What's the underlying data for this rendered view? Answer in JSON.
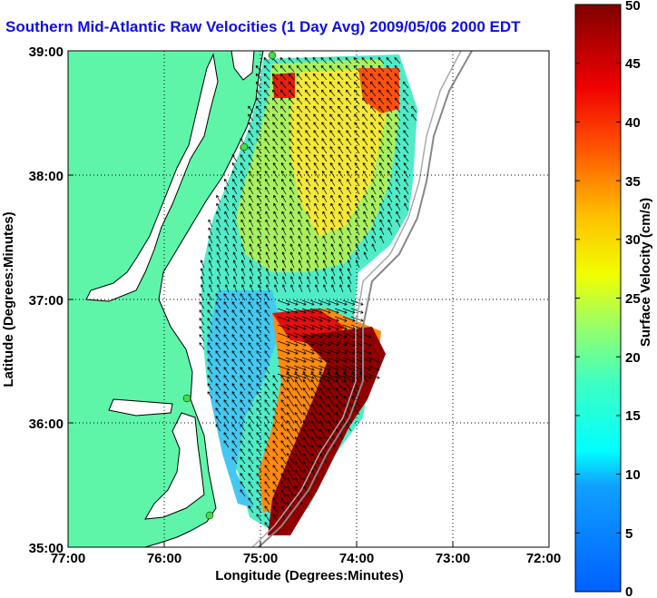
{
  "title": "Southern Mid-Atlantic Raw Velocities (1 Day Avg) 2009/05/06 2000 EDT",
  "xlabel": "Longitude (Degrees:Minutes)",
  "ylabel": "Latitude (Degrees:Minutes)",
  "colorbar": {
    "label": "Surface Velocity (cm/s)",
    "range": [
      0,
      50
    ],
    "ticks": [
      "0",
      "5",
      "10",
      "15",
      "20",
      "25",
      "30",
      "35",
      "40",
      "45",
      "50"
    ]
  },
  "x_ticks": [
    "77:00",
    "76:00",
    "75:00",
    "74:00",
    "73:00",
    "72:00"
  ],
  "y_ticks": [
    "39:00",
    "38:00",
    "37:00",
    "36:00",
    "35:00"
  ],
  "map": {
    "lon_range": [
      -77,
      -72
    ],
    "lat_range": [
      35,
      39
    ],
    "grid": true,
    "land_color": "#5ff5a8",
    "shelf_color": "#aaaaaa",
    "site_color": "#44dd44"
  }
}
